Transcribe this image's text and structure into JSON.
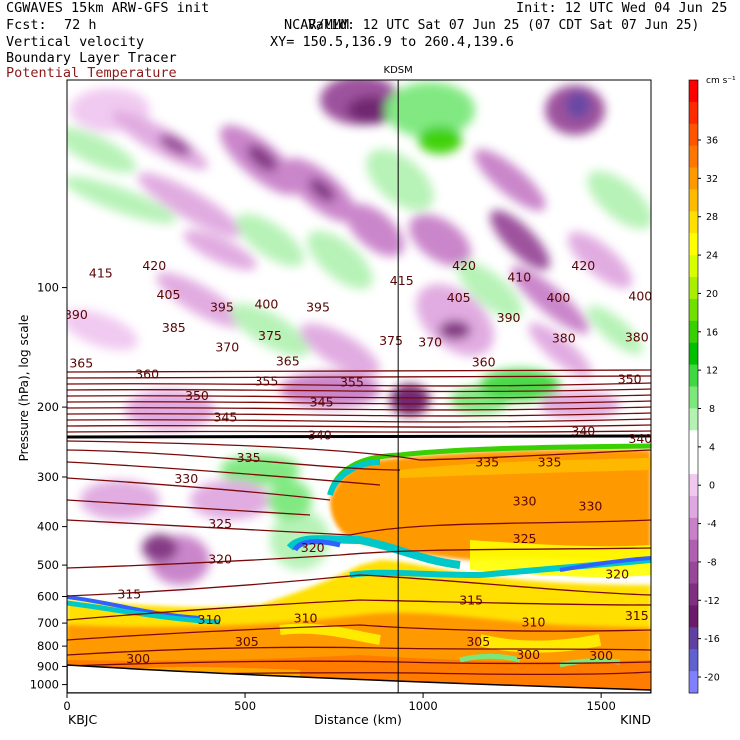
{
  "header": {
    "model_line": "CGWAVES 15km ARW-GFS init",
    "fcst_label": "Fcst:",
    "fcst_value": "72 h",
    "org": "NCAR/MMM",
    "init": "Init: 12 UTC Wed 04 Jun 25",
    "valid": "Valid: 12 UTC Sat 07 Jun 25 (07 CDT Sat 07 Jun 25)",
    "xy": "XY= 150.5,136.9 to 260.4,139.6",
    "fields": [
      "Vertical velocity",
      "Boundary Layer Tracer",
      "Potential Temperature"
    ]
  },
  "colors": {
    "potential_temperature": "#7a0a0a",
    "boundary_layer": "#ff8c00",
    "text": "#000000"
  },
  "chart_data": {
    "type": "heatmap",
    "xlabel": "Distance (km)",
    "ylabel": "Pressure (hPa), log scale",
    "x_ticks": [
      0,
      500,
      1000,
      1500
    ],
    "xlim": [
      0,
      1640
    ],
    "y_ticks": [
      100,
      200,
      300,
      400,
      500,
      600,
      700,
      800,
      900,
      1000
    ],
    "y_scale": "log",
    "ylim": [
      1050,
      30
    ],
    "left_station": "KBJC",
    "right_station": "KIND",
    "marker_station": "KDSM",
    "marker_distance_km": 930,
    "colorbar": {
      "unit": "cm s⁻¹",
      "tick_labels": [
        "36",
        "32",
        "28",
        "24",
        "20",
        "16",
        "12",
        "8",
        "4",
        "0",
        "-4",
        "-8",
        "-12",
        "-16",
        "-20"
      ],
      "colors": [
        "#ff0000",
        "#ff2a00",
        "#ff5500",
        "#ff7700",
        "#ff9900",
        "#ffbb00",
        "#ffe000",
        "#ffff00",
        "#d8ff00",
        "#a8f000",
        "#70e000",
        "#38d000",
        "#00c000",
        "#40d840",
        "#7ce87c",
        "#b4f2b4",
        "#ffffff",
        "#ffffff",
        "#f0c8f0",
        "#e0a8e0",
        "#c880c8",
        "#b060b0",
        "#984898",
        "#803080",
        "#6a1c6a",
        "#6040a0",
        "#6060d0",
        "#8080ff"
      ]
    },
    "theta_contour_labels": [
      {
        "x": 95,
        "p": 92,
        "label": "415"
      },
      {
        "x": 245,
        "p": 88,
        "label": "420"
      },
      {
        "x": 940,
        "p": 96,
        "label": "415"
      },
      {
        "x": 1115,
        "p": 88,
        "label": "420"
      },
      {
        "x": 1450,
        "p": 88,
        "label": "420"
      },
      {
        "x": 285,
        "p": 104,
        "label": "405"
      },
      {
        "x": 1270,
        "p": 94,
        "label": "410"
      },
      {
        "x": 1100,
        "p": 106,
        "label": "405"
      },
      {
        "x": 1380,
        "p": 106,
        "label": "400"
      },
      {
        "x": 1610,
        "p": 105,
        "label": "400"
      },
      {
        "x": 25,
        "p": 117,
        "label": "390"
      },
      {
        "x": 435,
        "p": 112,
        "label": "395"
      },
      {
        "x": 560,
        "p": 110,
        "label": "400"
      },
      {
        "x": 705,
        "p": 112,
        "label": "395"
      },
      {
        "x": 1240,
        "p": 119,
        "label": "390"
      },
      {
        "x": 300,
        "p": 126,
        "label": "385"
      },
      {
        "x": 570,
        "p": 132,
        "label": "375"
      },
      {
        "x": 910,
        "p": 136,
        "label": "375"
      },
      {
        "x": 1020,
        "p": 137,
        "label": "370"
      },
      {
        "x": 1395,
        "p": 134,
        "label": "380"
      },
      {
        "x": 1600,
        "p": 133,
        "label": "380"
      },
      {
        "x": 450,
        "p": 141,
        "label": "370"
      },
      {
        "x": 40,
        "p": 155,
        "label": "365"
      },
      {
        "x": 1170,
        "p": 154,
        "label": "360"
      },
      {
        "x": 620,
        "p": 153,
        "label": "365"
      },
      {
        "x": 225,
        "p": 165,
        "label": "360"
      },
      {
        "x": 560,
        "p": 172,
        "label": "355"
      },
      {
        "x": 800,
        "p": 173,
        "label": "355"
      },
      {
        "x": 1580,
        "p": 170,
        "label": "350"
      },
      {
        "x": 365,
        "p": 187,
        "label": "350"
      },
      {
        "x": 715,
        "p": 194,
        "label": "345"
      },
      {
        "x": 445,
        "p": 212,
        "label": "345"
      },
      {
        "x": 710,
        "p": 235,
        "label": "340"
      },
      {
        "x": 1450,
        "p": 230,
        "label": "340"
      },
      {
        "x": 1610,
        "p": 240,
        "label": "340"
      },
      {
        "x": 510,
        "p": 268,
        "label": "335"
      },
      {
        "x": 1180,
        "p": 275,
        "label": "335"
      },
      {
        "x": 1355,
        "p": 275,
        "label": "335"
      },
      {
        "x": 335,
        "p": 303,
        "label": "330"
      },
      {
        "x": 1285,
        "p": 345,
        "label": "330"
      },
      {
        "x": 1470,
        "p": 355,
        "label": "330"
      },
      {
        "x": 430,
        "p": 393,
        "label": "325"
      },
      {
        "x": 1285,
        "p": 428,
        "label": "325"
      },
      {
        "x": 430,
        "p": 482,
        "label": "320"
      },
      {
        "x": 690,
        "p": 452,
        "label": "320"
      },
      {
        "x": 1545,
        "p": 527,
        "label": "320"
      },
      {
        "x": 175,
        "p": 592,
        "label": "315"
      },
      {
        "x": 1135,
        "p": 612,
        "label": "315"
      },
      {
        "x": 1600,
        "p": 670,
        "label": "315"
      },
      {
        "x": 400,
        "p": 685,
        "label": "310"
      },
      {
        "x": 670,
        "p": 680,
        "label": "310"
      },
      {
        "x": 1310,
        "p": 695,
        "label": "310"
      },
      {
        "x": 505,
        "p": 780,
        "label": "305"
      },
      {
        "x": 1155,
        "p": 780,
        "label": "305"
      },
      {
        "x": 1295,
        "p": 840,
        "label": "300"
      },
      {
        "x": 1500,
        "p": 845,
        "label": "300"
      },
      {
        "x": 200,
        "p": 860,
        "label": "300"
      }
    ]
  }
}
